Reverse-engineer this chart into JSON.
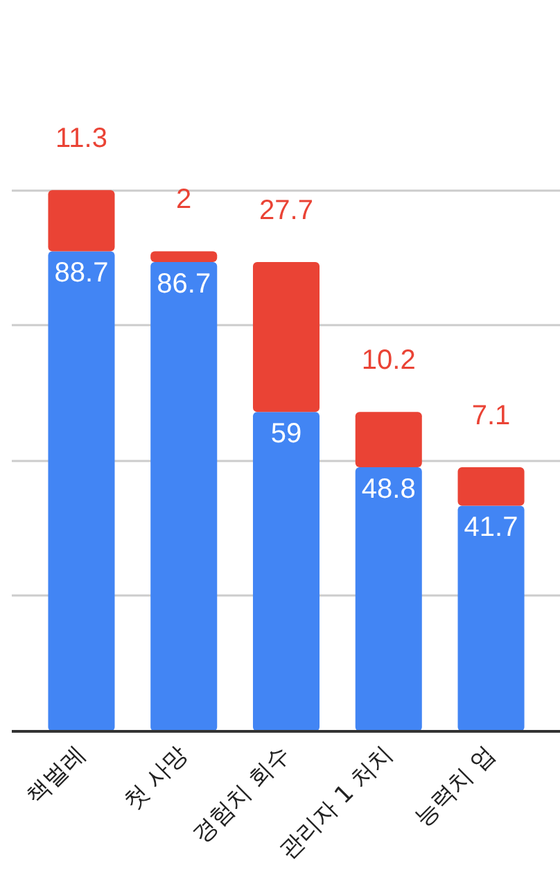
{
  "chart_data": {
    "type": "bar",
    "stacked": true,
    "categories": [
      "책벌레",
      "첫 사망",
      "경험치 회수",
      "관리자 1 처치",
      "능력치 업"
    ],
    "series": [
      {
        "color": "#4285f4",
        "values": [
          88.7,
          86.7,
          59,
          48.8,
          41.7
        ]
      },
      {
        "color": "#ea4335",
        "values": [
          11.3,
          2,
          27.7,
          10.2,
          7.1
        ]
      }
    ],
    "yticks": [
      {
        "value": 0,
        "label": null
      },
      {
        "value": 25,
        "label": null
      },
      {
        "value": 50,
        "label": null
      },
      {
        "value": 75,
        "label": null
      },
      {
        "value": 100,
        "label": null
      }
    ],
    "tick_labels": "x",
    "grid": "y",
    "data_labels": true
  }
}
